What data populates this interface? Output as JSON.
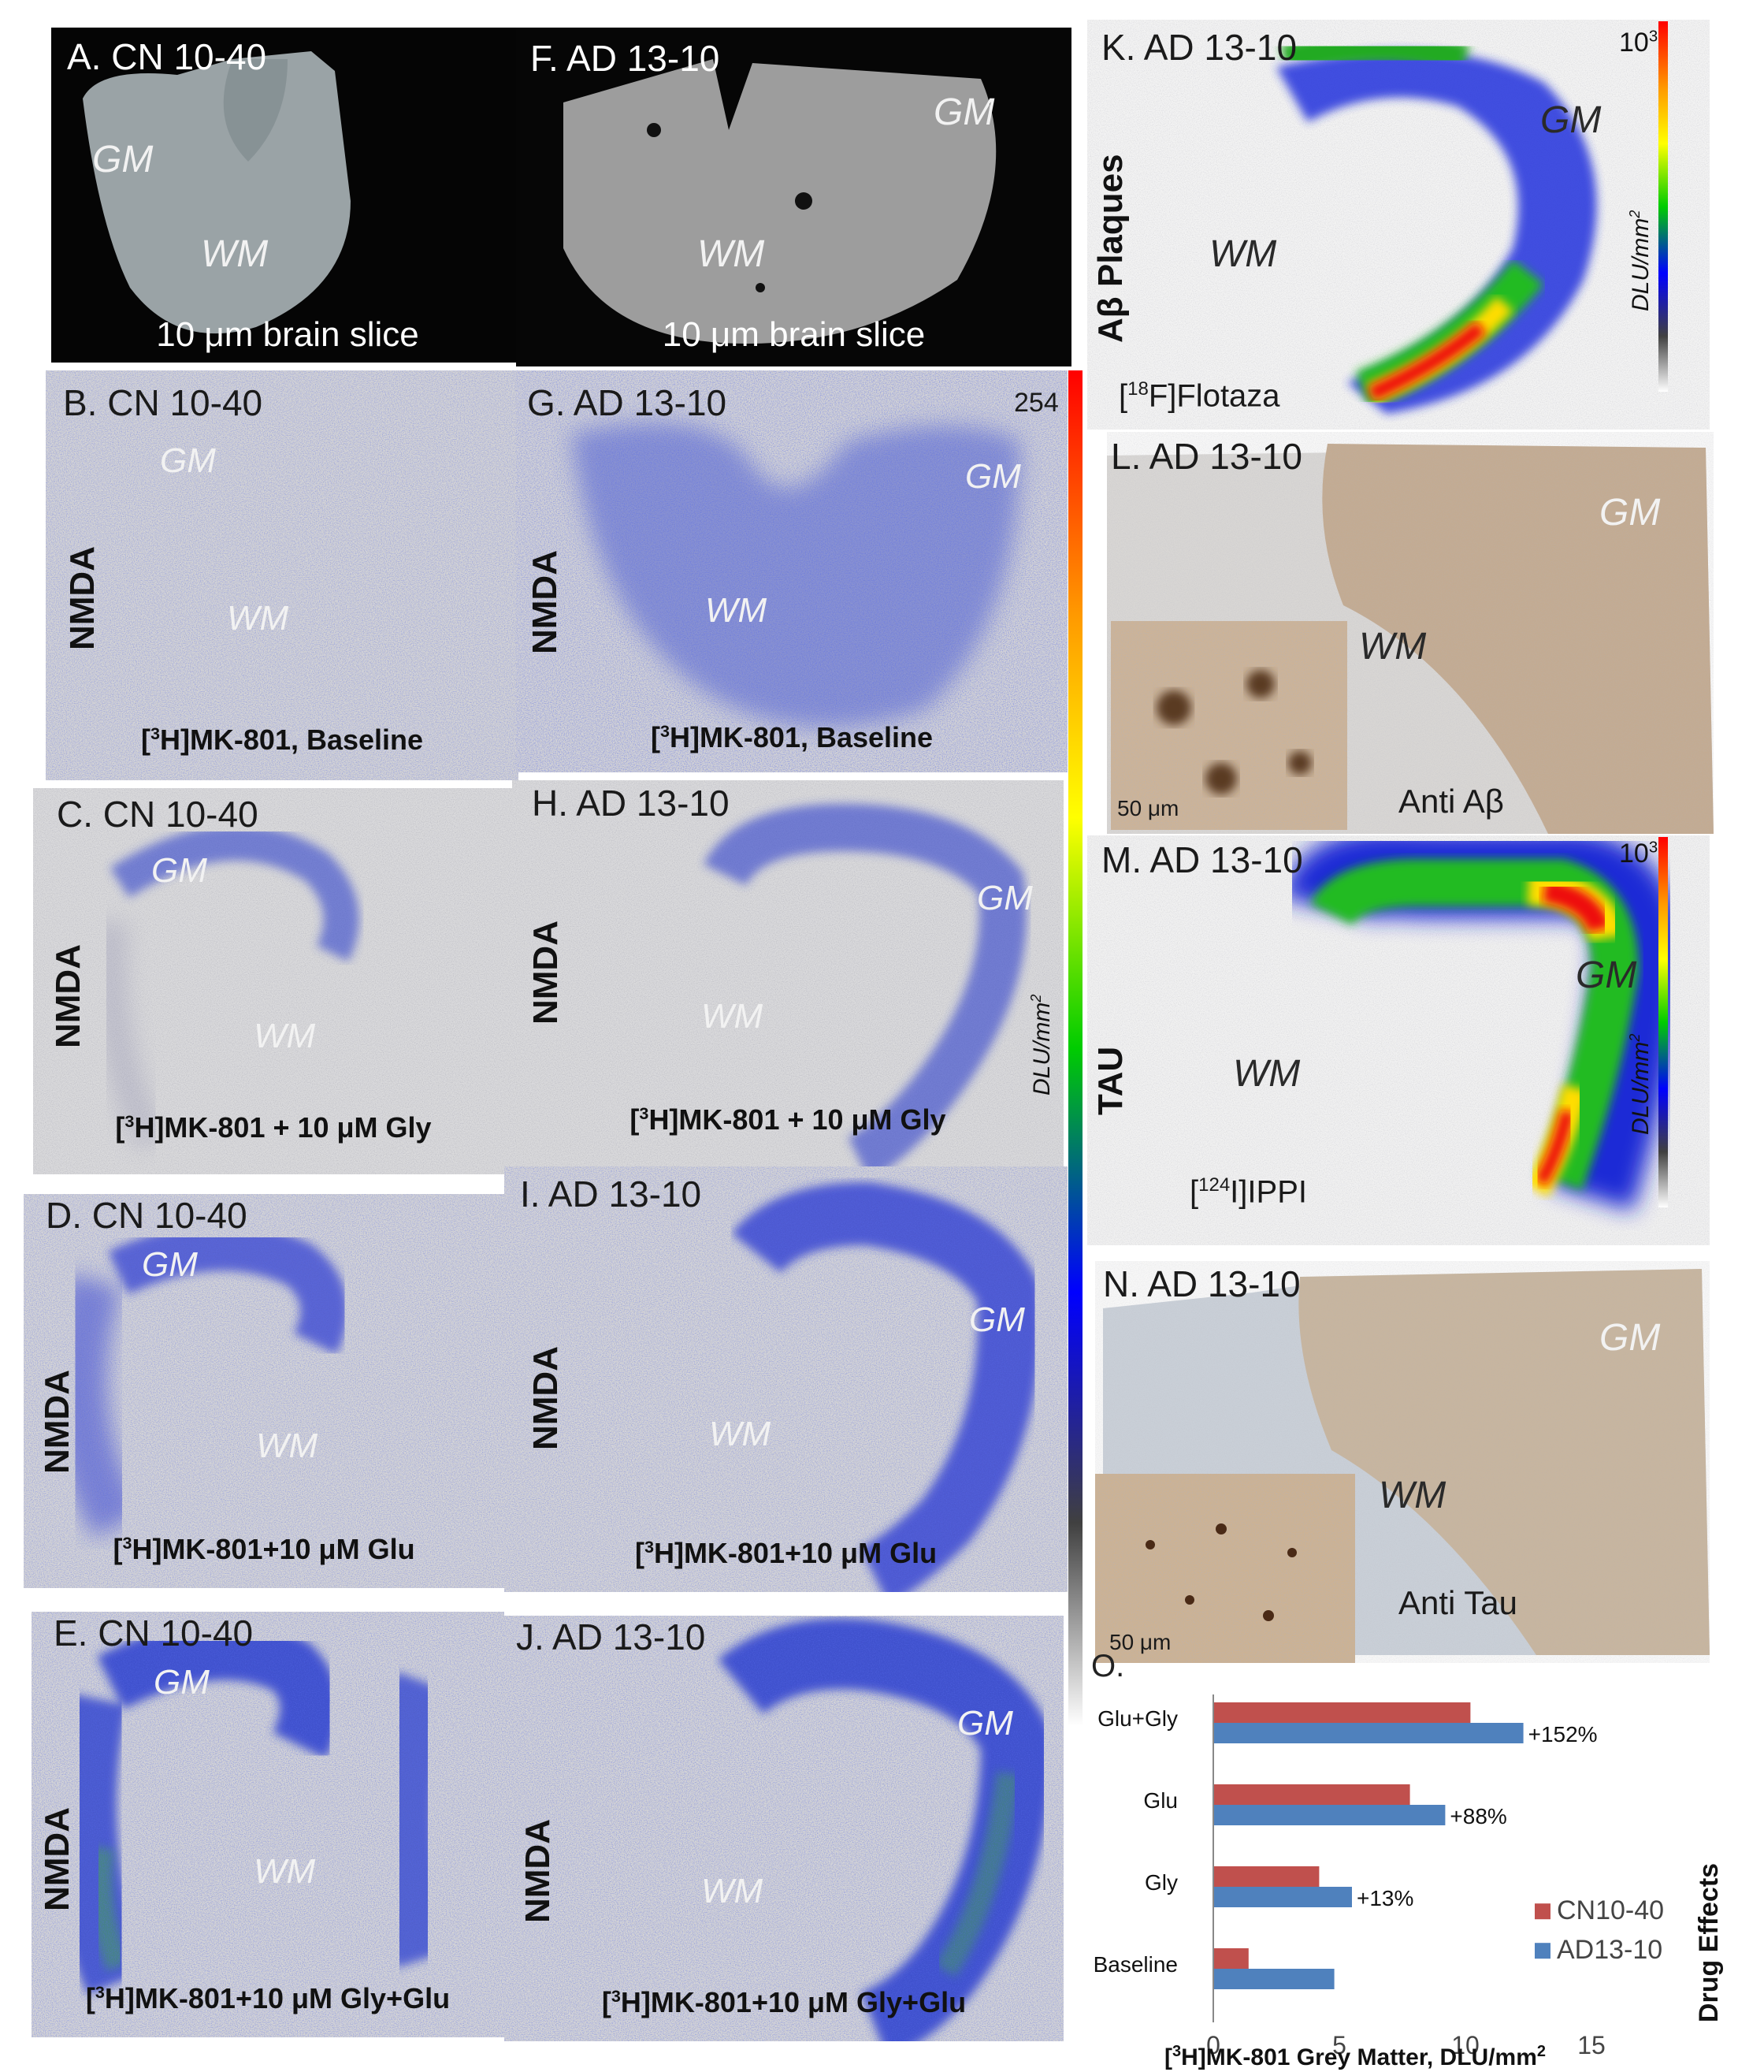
{
  "panels": {
    "A": {
      "title": "A. CN 10-40",
      "gm": "GM",
      "wm": "WM",
      "caption": "10 μm brain slice"
    },
    "F": {
      "title": "F. AD 13-10",
      "gm": "GM",
      "wm": "WM",
      "caption": "10 μm brain slice"
    },
    "B": {
      "title": "B. CN 10-40",
      "gm": "GM",
      "wm": "WM",
      "side": "NMDA",
      "caption": "[3H]MK-801, Baseline"
    },
    "G": {
      "title": "G. AD 13-10",
      "gm": "GM",
      "wm": "WM",
      "side": "NMDA",
      "caption": "[3H]MK-801, Baseline",
      "scale_max": "254"
    },
    "C": {
      "title": "C. CN 10-40",
      "gm": "GM",
      "wm": "WM",
      "side": "NMDA",
      "caption": "[3H]MK-801 + 10 μM Gly"
    },
    "H": {
      "title": "H. AD 13-10",
      "gm": "GM",
      "wm": "WM",
      "side": "NMDA",
      "caption": "[3H]MK-801 + 10 μM Gly",
      "scale_unit": "DLU/mm2"
    },
    "D": {
      "title": "D. CN 10-40",
      "gm": "GM",
      "wm": "WM",
      "side": "NMDA",
      "caption": "[3H]MK-801+10 μM Glu"
    },
    "I": {
      "title": "I. AD 13-10",
      "gm": "GM",
      "wm": "WM",
      "side": "NMDA",
      "caption": "[3H]MK-801+10 μM Glu"
    },
    "E": {
      "title": "E. CN 10-40",
      "gm": "GM",
      "wm": "WM",
      "side": "NMDA",
      "caption": "[3H]MK-801+10 μM Gly+Glu"
    },
    "J": {
      "title": "J. AD 13-10",
      "gm": "GM",
      "wm": "WM",
      "side": "NMDA",
      "caption": "[3H]MK-801+10 μM Gly+Glu"
    },
    "K": {
      "title": "K. AD 13-10",
      "gm": "GM",
      "wm": "WM",
      "side": "Aβ Plaques",
      "tracer": "[18F]Flotaza",
      "scale_max": "103",
      "scale_unit": "DLU/mm2"
    },
    "L": {
      "title": "L. AD 13-10",
      "gm": "GM",
      "wm": "WM",
      "inset_scale": "50 μm",
      "caption": "Anti Aβ"
    },
    "M": {
      "title": "M. AD 13-10",
      "gm": "GM",
      "wm": "WM",
      "side": "TAU",
      "tracer": "[124I]IPPI",
      "scale_max": "103",
      "scale_unit": "DLU/mm2"
    },
    "N": {
      "title": "N. AD 13-10",
      "gm": "GM",
      "wm": "WM",
      "inset_scale": "50 μm",
      "caption": "Anti Tau"
    }
  },
  "chart_data": {
    "panel_label": "O.",
    "type": "bar",
    "orientation": "horizontal",
    "categories": [
      "Baseline",
      "Gly",
      "Glu",
      "Glu+Gly"
    ],
    "series": [
      {
        "name": "CN10-40",
        "color": "#c0504d",
        "values": [
          1.4,
          4.2,
          7.8,
          10.2
        ]
      },
      {
        "name": "AD13-10",
        "color": "#4f81bd",
        "values": [
          4.8,
          5.5,
          9.2,
          12.3
        ]
      }
    ],
    "annotations": [
      "",
      "+13%",
      "+88%",
      "+152%"
    ],
    "xlim": [
      0,
      15
    ],
    "xticks": [
      "0",
      "5",
      "10",
      "15"
    ],
    "xlabel": "[3H]MK-801 Grey Matter, DLU/mm2",
    "ylabel": "Drug Effects",
    "legend_position": "right"
  }
}
